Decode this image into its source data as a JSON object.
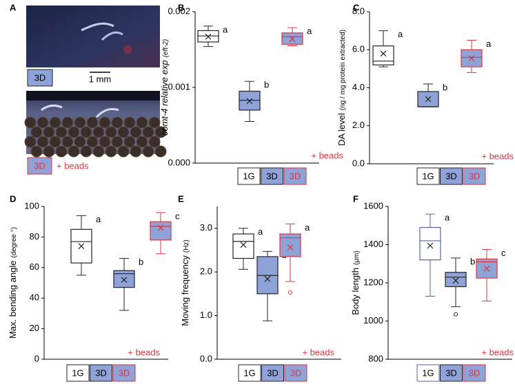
{
  "panel_a": {
    "label": "A",
    "top_tag": "3D",
    "scale": "1 mm",
    "bottom_tag": "3D",
    "bottom_note": "+ beads"
  },
  "chart_data": [
    {
      "type": "box",
      "panel": "B",
      "ylabel": "comt-4 relative exp",
      "ylabel_unit": "(eft-2)",
      "note": "+ beads",
      "ylim": [
        0,
        0.002
      ],
      "yticks": [
        {
          "value": 0,
          "label": "0.000"
        },
        {
          "value": 0.001,
          "label": "0.001"
        },
        {
          "value": 0.002,
          "label": "0.002"
        }
      ],
      "series": [
        {
          "name": "1G",
          "color": "#ffffff",
          "edge": "#222222",
          "min": 0.00154,
          "q1": 0.0016,
          "median": 0.00168,
          "q3": 0.00175,
          "max": 0.00181,
          "mean": 0.00167,
          "outliers": [],
          "letter": "a"
        },
        {
          "name": "3D",
          "color": "#8fa3d8",
          "edge": "#222222",
          "min": 0.00055,
          "q1": 0.0007,
          "median": 0.00083,
          "q3": 0.00095,
          "max": 0.00108,
          "mean": 0.00082,
          "outliers": [],
          "letter": "b"
        },
        {
          "name": "3D",
          "color": "#8fa3d8",
          "edge": "#d9363e",
          "min": 0.00155,
          "q1": 0.00157,
          "median": 0.00167,
          "q3": 0.00172,
          "max": 0.00179,
          "mean": 0.00164,
          "outliers": [],
          "letter": "a"
        }
      ]
    },
    {
      "type": "box",
      "panel": "C",
      "ylabel": "DA level",
      "ylabel_unit": "(ng / mg protein extracted)",
      "note": "+ beads",
      "ylim": [
        0,
        8
      ],
      "yticks": [
        {
          "value": 0,
          "label": "0.0"
        },
        {
          "value": 2,
          "label": "2.0"
        },
        {
          "value": 4,
          "label": "4.0"
        },
        {
          "value": 6,
          "label": "6.0"
        },
        {
          "value": 8,
          "label": "8.0"
        }
      ],
      "series": [
        {
          "name": "1G",
          "color": "#ffffff",
          "edge": "#222222",
          "min": 5.1,
          "q1": 5.2,
          "median": 5.4,
          "q3": 6.2,
          "max": 7.0,
          "mean": 5.8,
          "outliers": [],
          "letter": "a"
        },
        {
          "name": "3D",
          "color": "#8fa3d8",
          "edge": "#222222",
          "min": 3.0,
          "q1": 3.0,
          "median": 3.0,
          "q3": 3.8,
          "max": 4.2,
          "mean": 3.4,
          "outliers": [],
          "letter": "b"
        },
        {
          "name": "3D",
          "color": "#8fa3d8",
          "edge": "#d9363e",
          "min": 4.8,
          "q1": 5.1,
          "median": 5.6,
          "q3": 6.0,
          "max": 6.5,
          "mean": 5.55,
          "outliers": [],
          "letter": "a"
        }
      ]
    },
    {
      "type": "box",
      "panel": "D",
      "ylabel": "Max. bending angle",
      "ylabel_unit": "(degree °)",
      "note": "+ beads",
      "ylim": [
        0,
        100
      ],
      "yticks": [
        0,
        20,
        40,
        60,
        80,
        100
      ],
      "series": [
        {
          "name": "1G",
          "color": "#ffffff",
          "edge": "#222222",
          "min": 55,
          "q1": 63,
          "median": 77,
          "q3": 85,
          "max": 94,
          "mean": 74,
          "outliers": [],
          "letter": "a"
        },
        {
          "name": "3D",
          "color": "#8fa3d8",
          "edge": "#222222",
          "min": 32,
          "q1": 47,
          "median": 56,
          "q3": 58,
          "max": 66,
          "mean": 52,
          "outliers": [],
          "letter": "b"
        },
        {
          "name": "3D",
          "color": "#8fa3d8",
          "edge": "#d9363e",
          "min": 69,
          "q1": 78,
          "median": 87,
          "q3": 90,
          "max": 96,
          "mean": 86,
          "outliers": [],
          "letter": "c"
        }
      ]
    },
    {
      "type": "box",
      "panel": "E",
      "ylabel": "Moving frequency",
      "ylabel_unit": "(Hz)",
      "note": "+ beads",
      "ylim": [
        0,
        3.5
      ],
      "yticks": [
        {
          "value": 0,
          "label": "0.0"
        },
        {
          "value": 1,
          "label": "1.0"
        },
        {
          "value": 2,
          "label": "2.0"
        },
        {
          "value": 3,
          "label": "3.0"
        }
      ],
      "series": [
        {
          "name": "1G",
          "color": "#ffffff",
          "edge": "#222222",
          "min": 2.06,
          "q1": 2.31,
          "median": 2.7,
          "q3": 2.87,
          "max": 3.0,
          "mean": 2.62,
          "outliers": [],
          "letter": "a"
        },
        {
          "name": "3D",
          "color": "#8fa3d8",
          "edge": "#222222",
          "min": 0.88,
          "q1": 1.5,
          "median": 1.92,
          "q3": 2.35,
          "max": 2.47,
          "mean": 1.84,
          "outliers": [],
          "letter": "b"
        },
        {
          "name": "3D",
          "color": "#8fa3d8",
          "edge": "#d9363e",
          "min": 1.78,
          "q1": 2.35,
          "median": 2.78,
          "q3": 2.87,
          "max": 3.1,
          "mean": 2.56,
          "outliers": [
            1.53
          ],
          "letter": "a"
        }
      ]
    },
    {
      "type": "box",
      "panel": "F",
      "ylabel": "Body length",
      "ylabel_unit": "(μm)",
      "note": "+ beads",
      "ylim": [
        800,
        1600
      ],
      "yticks": [
        800,
        1000,
        1200,
        1400,
        1600
      ],
      "series": [
        {
          "name": "1G",
          "color": "#ffffff",
          "edge": "#5560a8",
          "min": 1130,
          "q1": 1320,
          "median": 1420,
          "q3": 1490,
          "max": 1560,
          "mean": 1395,
          "outliers": [],
          "letter": "a"
        },
        {
          "name": "3D",
          "color": "#8fa3d8",
          "edge": "#222222",
          "min": 1075,
          "q1": 1180,
          "median": 1230,
          "q3": 1255,
          "max": 1330,
          "mean": 1212,
          "outliers": [
            1035
          ],
          "letter": "b"
        },
        {
          "name": "3D",
          "color": "#8fa3d8",
          "edge": "#d9363e",
          "min": 1105,
          "q1": 1225,
          "median": 1310,
          "q3": 1325,
          "max": 1375,
          "mean": 1275,
          "outliers": [],
          "letter": "c"
        }
      ]
    }
  ]
}
